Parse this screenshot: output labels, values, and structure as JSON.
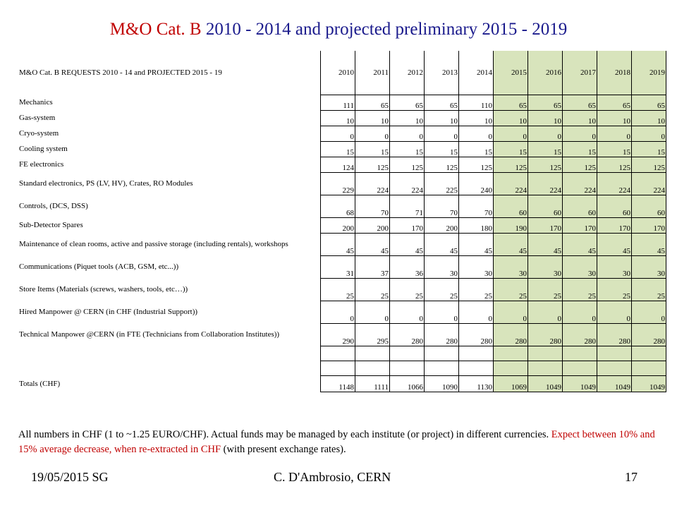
{
  "title": {
    "accent": "M&O Cat. B",
    "rest": " 2010 - 2014 and projected preliminary 2015 - 2019"
  },
  "table": {
    "header_label": "M&O Cat. B REQUESTS  2010 - 14 and PROJECTED  2015 - 19",
    "years": [
      "2010",
      "2011",
      "2012",
      "2013",
      "2014",
      "2015",
      "2016",
      "2017",
      "2018",
      "2019"
    ],
    "rows": [
      {
        "label": "Mechanics",
        "values": [
          "111",
          "65",
          "65",
          "65",
          "110",
          "65",
          "65",
          "65",
          "65",
          "65"
        ]
      },
      {
        "label": "Gas-system",
        "values": [
          "10",
          "10",
          "10",
          "10",
          "10",
          "10",
          "10",
          "10",
          "10",
          "10"
        ]
      },
      {
        "label": "Cryo-system",
        "values": [
          "0",
          "0",
          "0",
          "0",
          "0",
          "0",
          "0",
          "0",
          "0",
          "0"
        ]
      },
      {
        "label": "Cooling system",
        "values": [
          "15",
          "15",
          "15",
          "15",
          "15",
          "15",
          "15",
          "15",
          "15",
          "15"
        ]
      },
      {
        "label": "FE electronics",
        "values": [
          "124",
          "125",
          "125",
          "125",
          "125",
          "125",
          "125",
          "125",
          "125",
          "125"
        ]
      },
      {
        "label": "Standard electronics, PS (LV,  HV),  Crates, RO Modules",
        "values": [
          "229",
          "224",
          "224",
          "225",
          "240",
          "224",
          "224",
          "224",
          "224",
          "224"
        ]
      },
      {
        "label": "Controls, (DCS, DSS)",
        "values": [
          "68",
          "70",
          "71",
          "70",
          "70",
          "60",
          "60",
          "60",
          "60",
          "60"
        ]
      },
      {
        "label": "Sub-Detector Spares",
        "values": [
          "200",
          "200",
          "170",
          "200",
          "180",
          "190",
          "170",
          "170",
          "170",
          "170"
        ]
      },
      {
        "label": "Maintenance of clean rooms, active and passive storage (including rentals), workshops",
        "values": [
          "45",
          "45",
          "45",
          "45",
          "45",
          "45",
          "45",
          "45",
          "45",
          "45"
        ]
      },
      {
        "label": "Communications (Piquet tools (ACB,  GSM, etc...))",
        "values": [
          "31",
          "37",
          "36",
          "30",
          "30",
          "30",
          "30",
          "30",
          "30",
          "30"
        ]
      },
      {
        "label": "Store Items (Materials (screws,  washers,  tools, etc…))",
        "values": [
          "25",
          "25",
          "25",
          "25",
          "25",
          "25",
          "25",
          "25",
          "25",
          "25"
        ]
      },
      {
        "label": "Hired Manpower @ CERN (in CHF (Industrial Support))",
        "values": [
          "0",
          "0",
          "0",
          "0",
          "0",
          "0",
          "0",
          "0",
          "0",
          "0"
        ]
      },
      {
        "label": "Technical Manpower @CERN (in FTE (Technicians from Collaboration Institutes))",
        "values": [
          "290",
          "295",
          "280",
          "280",
          "280",
          "280",
          "280",
          "280",
          "280",
          "280"
        ]
      }
    ],
    "totals": {
      "label": "Totals (CHF)",
      "values": [
        "1148",
        "1111",
        "1066",
        "1090",
        "1130",
        "1069",
        "1049",
        "1049",
        "1049",
        "1049"
      ]
    }
  },
  "note": {
    "text": "All numbers in CHF (1 to ~1.25 EURO/CHF). Actual funds may be managed by each institute (or project) in different currencies. ",
    "red": "Expect between 10% and 15% average decrease, when re-extracted in CHF",
    "tail": " (with present exchange rates)."
  },
  "footer": {
    "date": "19/05/2015 SG",
    "author": "C. D'Ambrosio, CERN",
    "page": "17"
  },
  "colors": {
    "title_accent": "#c00000",
    "title_text": "#1a1a8c",
    "projected_fill": "#d8e4bc",
    "note_highlight": "#c00000"
  }
}
